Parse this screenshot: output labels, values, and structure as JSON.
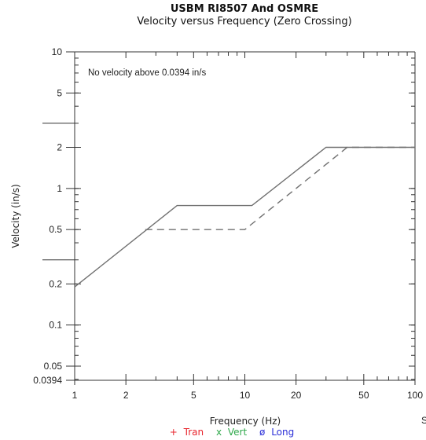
{
  "chart_data": {
    "type": "line",
    "title": "USBM RI8507 And OSMRE",
    "subtitle": "Velocity versus Frequency (Zero Crossing)",
    "xlabel": "Frequency (Hz)",
    "ylabel": "Velocity (in/s)",
    "x_scale": "log",
    "y_scale": "log",
    "xlim": [
      1,
      100
    ],
    "ylim": [
      0.0394,
      10
    ],
    "x_tick_labels": [
      {
        "value": 1,
        "label": "1"
      },
      {
        "value": 2,
        "label": "2"
      },
      {
        "value": 5,
        "label": "5"
      },
      {
        "value": 10,
        "label": "10"
      },
      {
        "value": 20,
        "label": "20"
      },
      {
        "value": 50,
        "label": "50"
      },
      {
        "value": 100,
        "label": "100"
      }
    ],
    "y_tick_labels": [
      {
        "value": 10,
        "label": "10"
      },
      {
        "value": 5,
        "label": "5"
      },
      {
        "value": 2,
        "label": "2"
      },
      {
        "value": 1,
        "label": "1"
      },
      {
        "value": 0.5,
        "label": "0.5"
      },
      {
        "value": 0.2,
        "label": "0.2"
      },
      {
        "value": 0.1,
        "label": "0.1"
      },
      {
        "value": 0.05,
        "label": "0.05"
      },
      {
        "value": 0.0394,
        "label": "0.0394"
      }
    ],
    "annotations": [
      "No velocity above 0.0394 in/s"
    ],
    "series": [
      {
        "style": "solid",
        "color": "#707070",
        "points": [
          [
            1,
            0.19
          ],
          [
            4,
            0.75
          ],
          [
            11,
            0.75
          ],
          [
            30,
            2.0
          ],
          [
            100,
            2.0
          ]
        ]
      },
      {
        "style": "dashed",
        "color": "#707070",
        "points": [
          [
            2.6,
            0.5
          ],
          [
            10,
            0.5
          ],
          [
            40,
            2.0
          ],
          [
            100,
            2.0
          ]
        ]
      }
    ],
    "legend": [
      {
        "symbol": "+",
        "label": "Tran",
        "color": "#e8262e"
      },
      {
        "symbol": "x",
        "label": "Vert",
        "color": "#2ea84a"
      },
      {
        "symbol": "ø",
        "label": "Long",
        "color": "#2b2fd8"
      }
    ],
    "grid": false,
    "edge_fragment": "S"
  }
}
